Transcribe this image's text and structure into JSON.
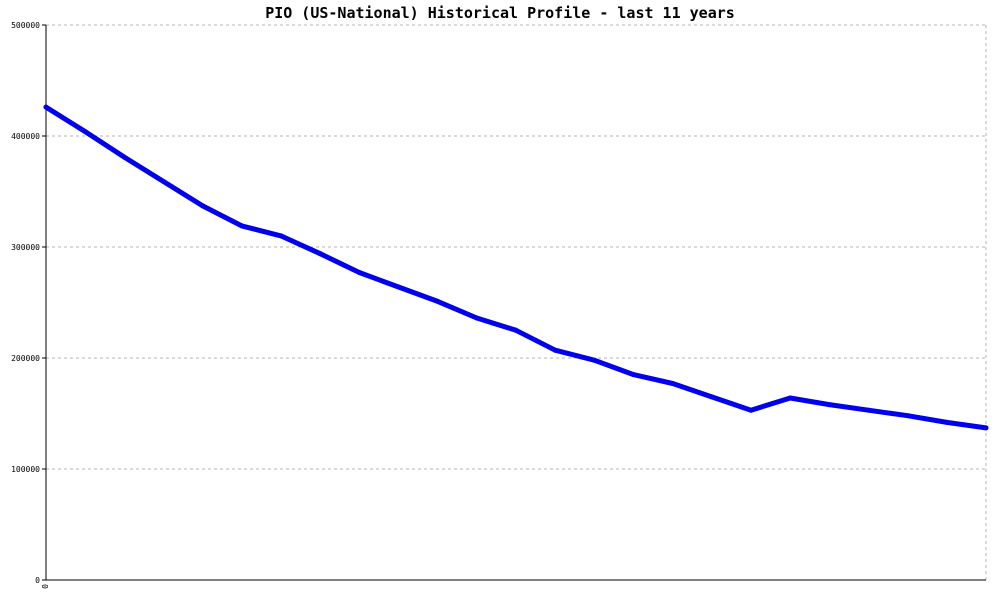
{
  "chart_data": {
    "type": "line",
    "title": "PIO (US-National) Historical Profile - last 11 years",
    "xlabel": "",
    "ylabel": "",
    "ylim": [
      0,
      500000
    ],
    "yticks": [
      0,
      100000,
      200000,
      300000,
      400000,
      500000
    ],
    "ytick_labels": [
      "0",
      "100000",
      "200000",
      "300000",
      "400000",
      "500000"
    ],
    "xtick_labels": [
      "0"
    ],
    "grid": true,
    "legend": "none",
    "series": [
      {
        "color": "#0000ee",
        "points": [
          [
            0,
            426000
          ],
          [
            1,
            404000
          ],
          [
            2,
            381000
          ],
          [
            3,
            359000
          ],
          [
            4,
            337000
          ],
          [
            5,
            319000
          ],
          [
            6,
            310000
          ],
          [
            7,
            294000
          ],
          [
            8,
            277000
          ],
          [
            9,
            264000
          ],
          [
            10,
            251000
          ],
          [
            11,
            236000
          ],
          [
            12,
            225000
          ],
          [
            13,
            207000
          ],
          [
            14,
            198000
          ],
          [
            15,
            185000
          ],
          [
            16,
            177000
          ],
          [
            17,
            165000
          ],
          [
            18,
            153000
          ],
          [
            19,
            164000
          ],
          [
            20,
            158000
          ],
          [
            21,
            153000
          ],
          [
            22,
            148000
          ],
          [
            23,
            142000
          ],
          [
            24,
            137000
          ]
        ]
      }
    ]
  }
}
